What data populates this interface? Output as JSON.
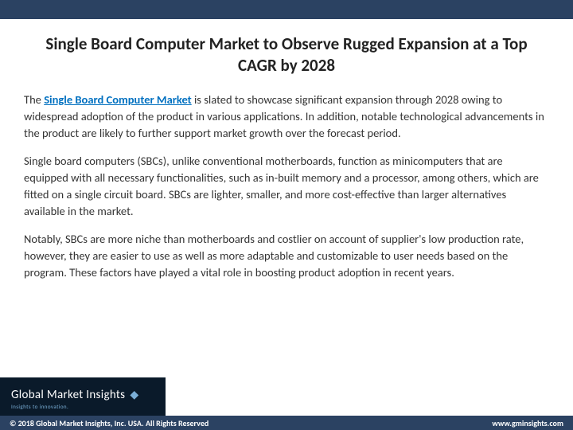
{
  "colors": {
    "header_bar": "#2b4262",
    "footer_bar": "#2b4262",
    "logo_bg": "#0a1a2a",
    "link": "#0070c0",
    "body_text": "#333333",
    "title_text": "#222222",
    "logo_accent": "#7aaed6",
    "background": "#ffffff"
  },
  "header": {
    "title": "Single Board Computer Market to Observe Rugged Expansion at a Top CAGR by 2028"
  },
  "body": {
    "p1_prefix": "The ",
    "p1_link": "Single Board Computer Market",
    "p1_rest": " is slated to showcase significant expansion through 2028 owing to widespread adoption of the product in various applications. In addition, notable technological advancements in the product are likely to further support market growth over the forecast period.",
    "p2": "Single board computers (SBCs), unlike conventional motherboards, function as minicomputers that are equipped with all necessary functionalities, such as in-built memory and a processor, among others, which are fitted on a single circuit board. SBCs are lighter, smaller, and more cost-effective than larger alternatives available in the market.",
    "p3": "Notably, SBCs are more niche than motherboards and costlier on account of supplier's low production rate, however, they are easier to use as well as more adaptable and customizable to user needs based on the program. These factors have played a vital role in boosting product adoption in recent years."
  },
  "logo": {
    "main": "Global Market Insights",
    "tagline": "Insights to innovation."
  },
  "footer": {
    "copyright": "© 2018 Global Market Insights, Inc. USA. All Rights Reserved",
    "website": "www.gminsights.com"
  }
}
